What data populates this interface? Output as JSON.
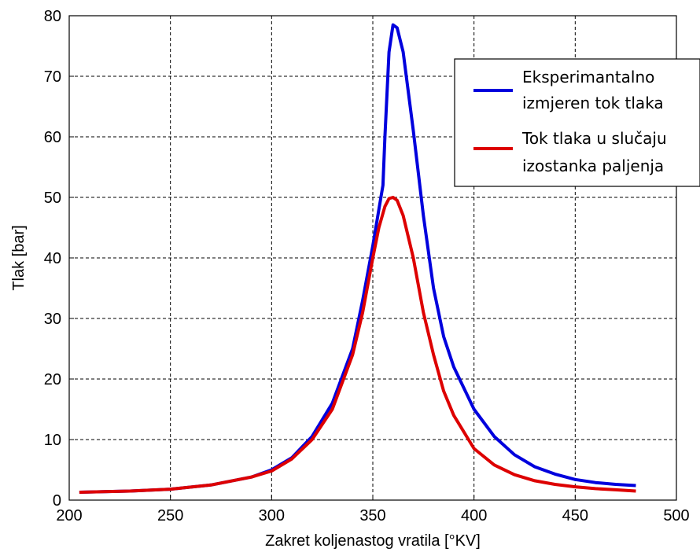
{
  "chart_data": {
    "type": "line",
    "title": "",
    "xlabel": "Zakret koljenastog vratila [°KV]",
    "ylabel": "Tlak [bar]",
    "xlim": [
      200,
      500
    ],
    "ylim": [
      0,
      80
    ],
    "xticks": [
      200,
      250,
      300,
      350,
      400,
      450,
      500
    ],
    "yticks": [
      0,
      10,
      20,
      30,
      40,
      50,
      60,
      70,
      80
    ],
    "grid": true,
    "legend_position": "top-right",
    "series": [
      {
        "name": "Eksperimantalno izmjeren tok tlaka",
        "legend_lines": [
          "Eksperimantalno",
          "izmjeren tok tlaka"
        ],
        "color": "#0000dd",
        "x": [
          205,
          230,
          250,
          270,
          290,
          300,
          310,
          320,
          330,
          340,
          345,
          350,
          353,
          355,
          356,
          358,
          360,
          362,
          365,
          370,
          375,
          380,
          385,
          390,
          400,
          410,
          420,
          430,
          440,
          450,
          460,
          470,
          480
        ],
        "y": [
          1.3,
          1.5,
          1.8,
          2.5,
          3.8,
          5.0,
          7.0,
          10.5,
          16.0,
          25.0,
          33.0,
          42.0,
          48.0,
          52.0,
          60.0,
          74.0,
          78.5,
          78.0,
          74.0,
          61.0,
          47.0,
          35.0,
          27.0,
          22.0,
          15.0,
          10.5,
          7.5,
          5.5,
          4.3,
          3.4,
          2.9,
          2.6,
          2.4
        ]
      },
      {
        "name": "Tok tlaka u slučaju izostanka paljenja",
        "legend_lines": [
          "Tok tlaka u slučaju",
          "izostanka paljenja"
        ],
        "color": "#dd0000",
        "x": [
          205,
          230,
          250,
          270,
          290,
          300,
          310,
          320,
          330,
          340,
          345,
          350,
          353,
          356,
          358,
          360,
          362,
          365,
          370,
          375,
          380,
          385,
          390,
          400,
          410,
          420,
          430,
          440,
          450,
          460,
          470,
          480
        ],
        "y": [
          1.3,
          1.5,
          1.8,
          2.5,
          3.8,
          4.8,
          6.8,
          10.0,
          15.0,
          24.0,
          31.0,
          40.0,
          45.0,
          48.5,
          49.8,
          50.0,
          49.5,
          47.0,
          40.0,
          31.0,
          24.0,
          18.0,
          14.0,
          8.5,
          5.8,
          4.2,
          3.2,
          2.6,
          2.2,
          1.9,
          1.7,
          1.5
        ]
      }
    ]
  }
}
